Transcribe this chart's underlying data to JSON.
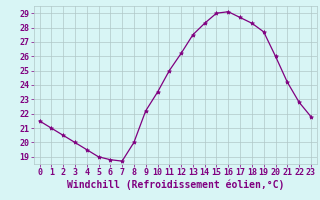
{
  "x": [
    0,
    1,
    2,
    3,
    4,
    5,
    6,
    7,
    8,
    9,
    10,
    11,
    12,
    13,
    14,
    15,
    16,
    17,
    18,
    19,
    20,
    21,
    22,
    23
  ],
  "y": [
    21.5,
    21.0,
    20.5,
    20.0,
    19.5,
    19.0,
    18.8,
    18.7,
    20.0,
    22.2,
    23.5,
    25.0,
    26.2,
    27.5,
    28.3,
    29.0,
    29.1,
    28.7,
    28.3,
    27.7,
    26.0,
    24.2,
    22.8,
    21.8
  ],
  "line_color": "#800080",
  "marker": "*",
  "marker_size": 3,
  "bg_color": "#d8f5f5",
  "grid_color": "#b0c8c8",
  "xlabel": "Windchill (Refroidissement éolien,°C)",
  "xlabel_color": "#800080",
  "xlabel_fontsize": 7,
  "tick_color": "#800080",
  "tick_fontsize": 6,
  "ylim": [
    18.5,
    29.5
  ],
  "yticks": [
    19,
    20,
    21,
    22,
    23,
    24,
    25,
    26,
    27,
    28,
    29
  ],
  "xlim": [
    -0.5,
    23.5
  ],
  "xticks": [
    0,
    1,
    2,
    3,
    4,
    5,
    6,
    7,
    8,
    9,
    10,
    11,
    12,
    13,
    14,
    15,
    16,
    17,
    18,
    19,
    20,
    21,
    22,
    23
  ]
}
